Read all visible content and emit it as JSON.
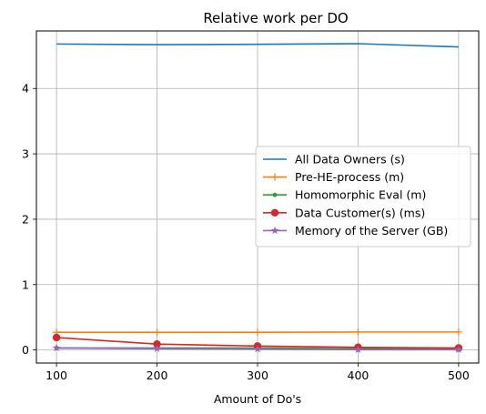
{
  "chart_data": {
    "type": "line",
    "title": "Relative work per DO",
    "xlabel": "Amount of Do's",
    "ylabel": "",
    "x": [
      100,
      200,
      300,
      400,
      500
    ],
    "xlim": [
      80,
      520
    ],
    "ylim": [
      -0.2,
      4.88
    ],
    "xticks": [
      100,
      200,
      300,
      400,
      500
    ],
    "yticks": [
      0,
      1,
      2,
      3,
      4
    ],
    "grid": true,
    "legend_position": "center-right",
    "series": [
      {
        "name": "All Data Owners (s)",
        "color": "#1f77b4",
        "marker": "none",
        "values": [
          4.68,
          4.67,
          4.675,
          4.685,
          4.635
        ]
      },
      {
        "name": "Pre-HE-process (m)",
        "color": "#ff7f0e",
        "marker": "plus",
        "values": [
          0.27,
          0.27,
          0.27,
          0.275,
          0.275
        ]
      },
      {
        "name": "Homomorphic Eval (m)",
        "color": "#2ca02c",
        "marker": "point",
        "values": [
          0.03,
          0.03,
          0.03,
          0.02,
          0.02
        ]
      },
      {
        "name": "Data Customer(s) (ms)",
        "color": "#d62728",
        "marker": "circle",
        "values": [
          0.19,
          0.09,
          0.06,
          0.04,
          0.03
        ]
      },
      {
        "name": "Memory of the Server (GB)",
        "color": "#9467bd",
        "marker": "star",
        "values": [
          0.03,
          0.02,
          0.015,
          0.005,
          0.005
        ]
      }
    ]
  }
}
